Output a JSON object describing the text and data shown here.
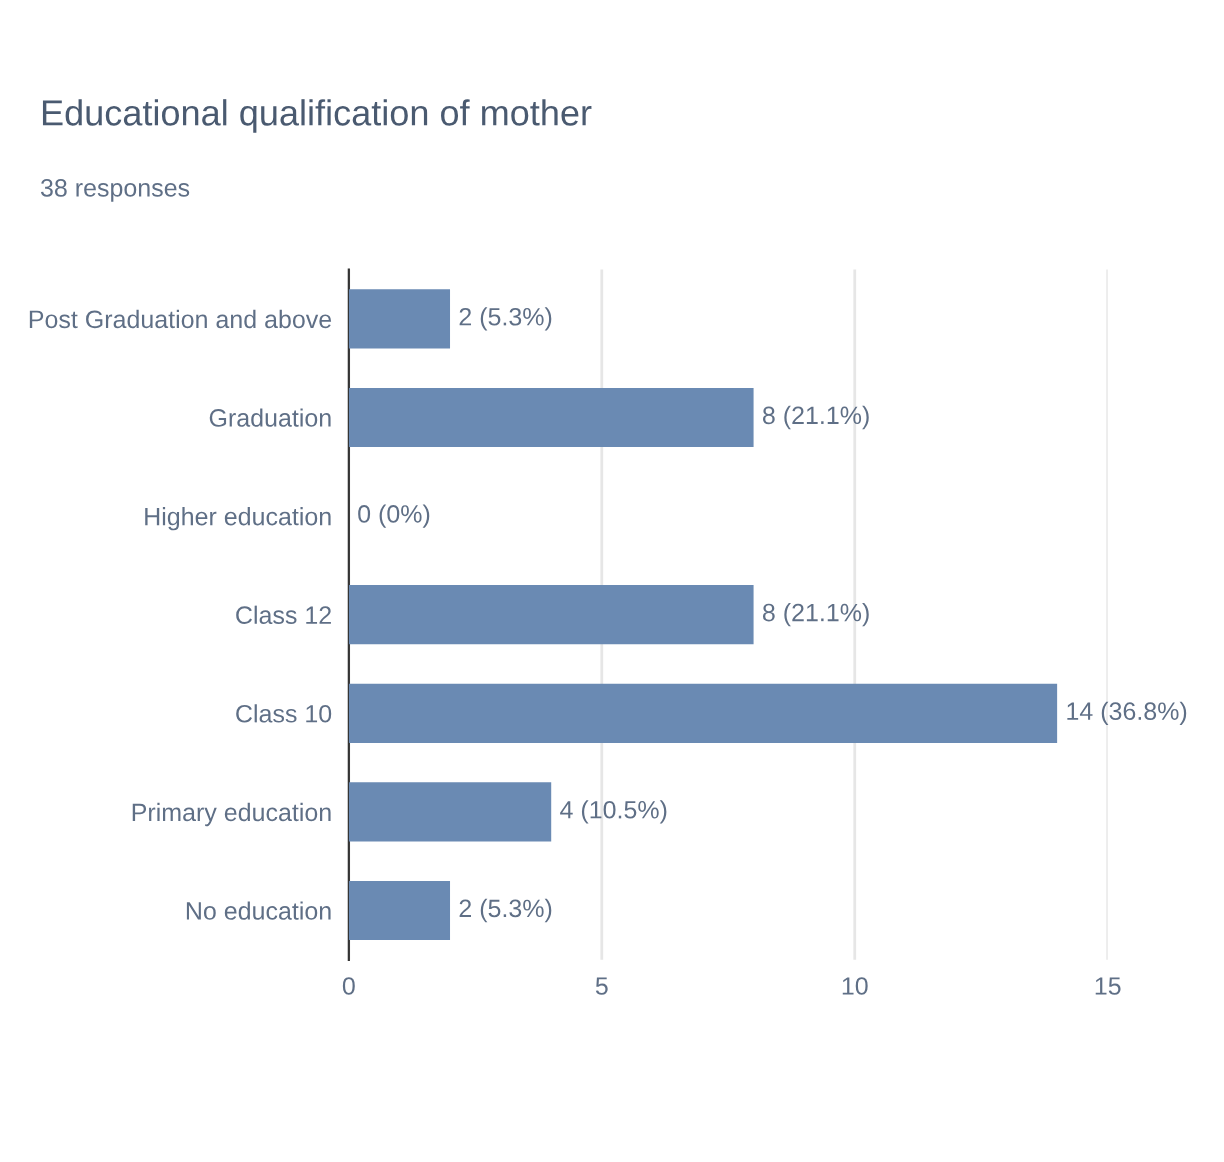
{
  "chart_data": {
    "type": "bar",
    "orientation": "horizontal",
    "title": "Educational qualification of mother",
    "subtitle": "38 responses",
    "categories": [
      "Post Graduation and above",
      "Graduation",
      "Higher education",
      "Class 12",
      "Class 10",
      "Primary education",
      "No education"
    ],
    "values": [
      2,
      8,
      0,
      8,
      14,
      4,
      2
    ],
    "value_labels": [
      "2 (5.3%)",
      "8 (21.1%)",
      "0 (0%)",
      "8 (21.1%)",
      "14 (36.8%)",
      "4 (10.5%)",
      "2 (5.3%)"
    ],
    "color": "#6a8ab3",
    "xlim": [
      0,
      15
    ],
    "xticks": [
      0,
      5,
      10,
      15
    ],
    "grid": "x"
  }
}
